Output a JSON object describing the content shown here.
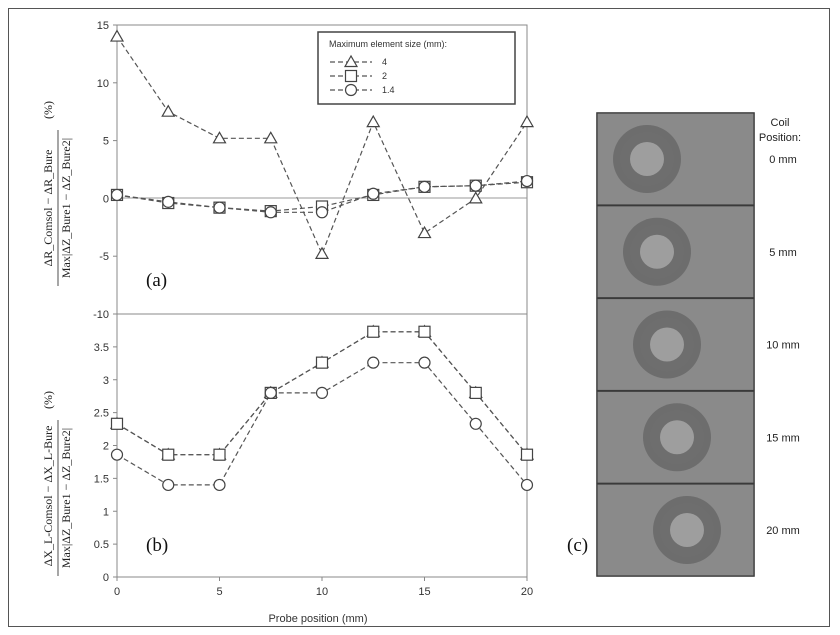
{
  "chart_data": [
    {
      "type": "line",
      "panel_label": "(a)",
      "ylabel_numerator": "ΔR_Comsol − ΔR_Bure",
      "ylabel_denominator": "Max|ΔZ_Bure1 − ΔZ_Bure2|",
      "ylabel_unit": "(%)",
      "ylim": [
        -10,
        15
      ],
      "yticks": [
        "-10",
        "-5",
        "0",
        "5",
        "10",
        "15"
      ],
      "xlim": [
        0,
        20
      ],
      "x": [
        0,
        2.5,
        5,
        7.5,
        10,
        12.5,
        15,
        17.5,
        20
      ],
      "legend": {
        "title": "Maximum element size (mm):",
        "placement": "top-right"
      },
      "series": [
        {
          "name": "4",
          "marker": "triangle",
          "values": [
            14,
            7.5,
            5.2,
            5.2,
            -4.8,
            6.6,
            -3,
            0,
            6.6
          ]
        },
        {
          "name": "2",
          "marker": "square",
          "values": [
            0.3,
            -0.4,
            -0.8,
            -1.1,
            -0.7,
            0.3,
            1.0,
            1.1,
            1.4
          ]
        },
        {
          "name": "1.4",
          "marker": "circle",
          "values": [
            0.3,
            -0.3,
            -0.8,
            -1.2,
            -1.2,
            0.4,
            1.0,
            1.1,
            1.5
          ]
        }
      ],
      "grid": false
    },
    {
      "type": "line",
      "panel_label": "(b)",
      "ylabel_numerator": "ΔX_L-Comsol − ΔX_L-Bure",
      "ylabel_denominator": "Max|ΔZ_Bure1 − ΔZ_Bure2|",
      "ylabel_unit": "(%)",
      "ylim": [
        0,
        4
      ],
      "yticks": [
        "0",
        "0.5",
        "1",
        "1.5",
        "2",
        "2.5",
        "3",
        "3.5"
      ],
      "xlim": [
        0,
        20
      ],
      "xlabel": "Probe position (mm)",
      "xticks": [
        "0",
        "5",
        "10",
        "15",
        "20"
      ],
      "x": [
        0,
        2.5,
        5,
        7.5,
        10,
        12.5,
        15,
        17.5,
        20
      ],
      "series": [
        {
          "name": "4",
          "marker": "triangle",
          "values": [
            2.33,
            1.86,
            1.86,
            2.8,
            3.26,
            3.73,
            3.73,
            2.8,
            1.86
          ]
        },
        {
          "name": "2",
          "marker": "square",
          "values": [
            2.33,
            1.86,
            1.86,
            2.8,
            3.26,
            3.73,
            3.73,
            2.8,
            1.86
          ]
        },
        {
          "name": "1.4",
          "marker": "circle",
          "values": [
            1.86,
            1.4,
            1.4,
            2.8,
            2.8,
            3.26,
            3.26,
            2.33,
            1.4
          ]
        }
      ],
      "grid": false
    }
  ],
  "panel_c": {
    "label": "(c)",
    "header": "Coil\nPosition:",
    "positions": [
      "0 mm",
      "5 mm",
      "10 mm",
      "15 mm",
      "20 mm"
    ],
    "offsets_mm": [
      0,
      5,
      10,
      15,
      20
    ]
  },
  "colors": {
    "line": "#555555",
    "marker_fill": "#ffffff",
    "photo_bg": "#8a8a8a",
    "ring": "#555555",
    "core": "#9e9e9e"
  }
}
